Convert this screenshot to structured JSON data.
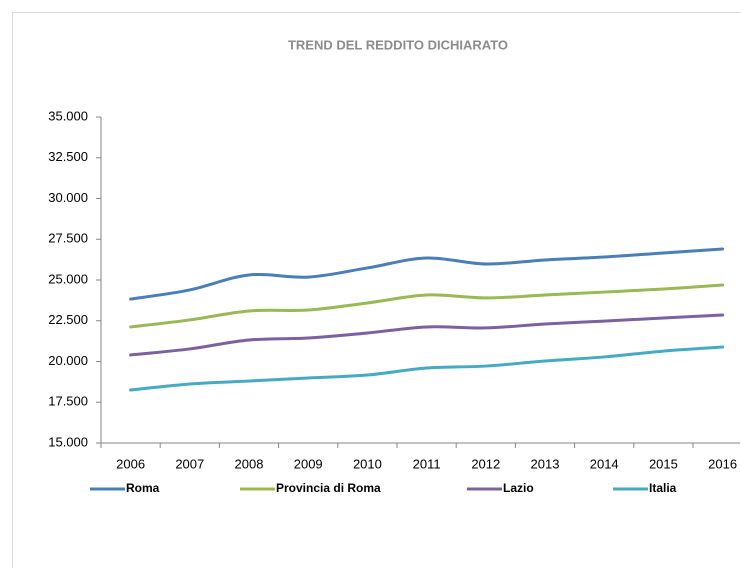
{
  "chart_data": {
    "type": "line",
    "title": "TREND DEL REDDITO DICHIARATO",
    "categories": [
      "2006",
      "2007",
      "2008",
      "2009",
      "2010",
      "2011",
      "2012",
      "2013",
      "2014",
      "2015",
      "2016"
    ],
    "series": [
      {
        "name": "Roma",
        "color": "#4a7ebb",
        "values": [
          23830,
          24390,
          25310,
          25180,
          25740,
          26350,
          25980,
          26230,
          26410,
          26660,
          26900
        ]
      },
      {
        "name": "Provincia di Roma",
        "color": "#98b954",
        "values": [
          22120,
          22550,
          23100,
          23160,
          23590,
          24080,
          23900,
          24080,
          24260,
          24450,
          24690
        ]
      },
      {
        "name": "Lazio",
        "color": "#7d60a0",
        "values": [
          20400,
          20770,
          21320,
          21440,
          21750,
          22120,
          22060,
          22300,
          22480,
          22670,
          22850
        ]
      },
      {
        "name": "Italia",
        "color": "#46aac5",
        "values": [
          18250,
          18620,
          18800,
          18990,
          19170,
          19600,
          19720,
          20030,
          20280,
          20640,
          20890
        ]
      }
    ],
    "ylim": [
      15000,
      35000
    ],
    "yticks": [
      {
        "value": 15000,
        "label": "15.000"
      },
      {
        "value": 17500,
        "label": "17.500"
      },
      {
        "value": 20000,
        "label": "20.000"
      },
      {
        "value": 22500,
        "label": "22.500"
      },
      {
        "value": 25000,
        "label": "25.000"
      },
      {
        "value": 27500,
        "label": "27.500"
      },
      {
        "value": 30000,
        "label": "30.000"
      },
      {
        "value": 32500,
        "label": "32.500"
      },
      {
        "value": 35000,
        "label": "35.000"
      }
    ],
    "legend": "bottom"
  }
}
